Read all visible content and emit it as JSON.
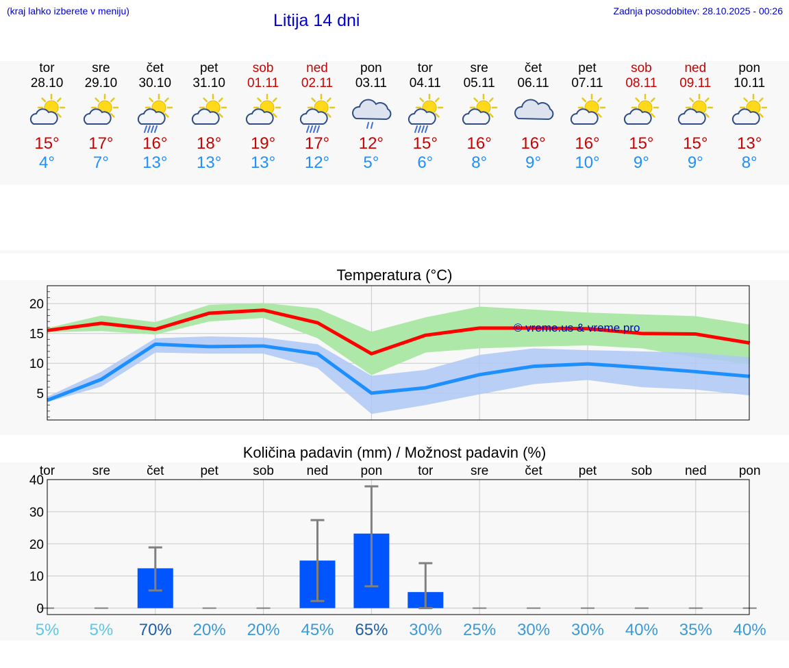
{
  "header": {
    "location_hint": "(kraj lahko izberete v meniju)",
    "title": "Litija 14 dni",
    "updated": "Zadnja posodobitev: 28.10.2025 - 00:26"
  },
  "days": [
    {
      "day": "tor",
      "date": "28.10",
      "weekend": false,
      "icon": "partly-sunny-icon",
      "tmax": "15°",
      "tmin": "4°"
    },
    {
      "day": "sre",
      "date": "29.10",
      "weekend": false,
      "icon": "partly-sunny-icon",
      "tmax": "17°",
      "tmin": "7°"
    },
    {
      "day": "čet",
      "date": "30.10",
      "weekend": false,
      "icon": "sun-rain-icon",
      "tmax": "16°",
      "tmin": "13°"
    },
    {
      "day": "pet",
      "date": "31.10",
      "weekend": false,
      "icon": "partly-sunny-icon",
      "tmax": "18°",
      "tmin": "13°"
    },
    {
      "day": "sob",
      "date": "01.11",
      "weekend": true,
      "icon": "partly-sunny-icon",
      "tmax": "19°",
      "tmin": "13°"
    },
    {
      "day": "ned",
      "date": "02.11",
      "weekend": true,
      "icon": "sun-rain-icon",
      "tmax": "17°",
      "tmin": "12°"
    },
    {
      "day": "pon",
      "date": "03.11",
      "weekend": false,
      "icon": "cloud-rain-icon",
      "tmax": "12°",
      "tmin": "5°"
    },
    {
      "day": "tor",
      "date": "04.11",
      "weekend": false,
      "icon": "sun-rain-icon",
      "tmax": "15°",
      "tmin": "6°"
    },
    {
      "day": "sre",
      "date": "05.11",
      "weekend": false,
      "icon": "partly-sunny-icon",
      "tmax": "16°",
      "tmin": "8°"
    },
    {
      "day": "čet",
      "date": "06.11",
      "weekend": false,
      "icon": "cloudy-icon",
      "tmax": "16°",
      "tmin": "9°"
    },
    {
      "day": "pet",
      "date": "07.11",
      "weekend": false,
      "icon": "partly-sunny-icon",
      "tmax": "16°",
      "tmin": "10°"
    },
    {
      "day": "sob",
      "date": "08.11",
      "weekend": true,
      "icon": "partly-sunny-icon",
      "tmax": "15°",
      "tmin": "9°"
    },
    {
      "day": "ned",
      "date": "09.11",
      "weekend": true,
      "icon": "partly-sunny-icon",
      "tmax": "15°",
      "tmin": "9°"
    },
    {
      "day": "pon",
      "date": "10.11",
      "weekend": false,
      "icon": "partly-sunny-icon",
      "tmax": "13°",
      "tmin": "8°"
    }
  ],
  "colors": {
    "max_line": "#ff0000",
    "max_band": "#aee8a8",
    "min_line": "#1e8fff",
    "min_band": "#aec8f4",
    "bar": "#0055ff",
    "error": "#808080",
    "weekend": "#cc0000"
  },
  "chart_data": [
    {
      "type": "line",
      "title": "Temperatura (°C)",
      "watermark": "© vreme.us & vreme.pro",
      "xlabel": "",
      "ylabel": "",
      "ylim": [
        0.5,
        23
      ],
      "yticks": [
        5,
        10,
        15,
        20
      ],
      "x": [
        0,
        1,
        2,
        3,
        4,
        5,
        6,
        7,
        8,
        9,
        10,
        11,
        12,
        13
      ],
      "series": [
        {
          "name": "max",
          "values": [
            15.5,
            16.7,
            15.7,
            18.4,
            18.9,
            16.8,
            11.6,
            14.7,
            15.9,
            15.9,
            15.8,
            15.0,
            14.9,
            13.4
          ],
          "low": [
            15.2,
            15.4,
            14.8,
            17.0,
            17.6,
            14.2,
            8.0,
            11.8,
            12.5,
            12.8,
            13.0,
            12.5,
            11.0,
            9.8
          ],
          "high": [
            15.9,
            18.0,
            16.9,
            19.8,
            20.1,
            19.2,
            15.3,
            17.7,
            19.5,
            19.0,
            18.5,
            18.2,
            17.9,
            16.5
          ]
        },
        {
          "name": "min",
          "values": [
            3.8,
            7.3,
            13.2,
            12.8,
            12.9,
            11.6,
            5.0,
            5.9,
            8.1,
            9.5,
            9.9,
            9.3,
            8.6,
            7.8
          ],
          "low": [
            3.5,
            6.1,
            11.8,
            11.6,
            11.6,
            9.2,
            1.5,
            3.0,
            4.8,
            6.5,
            7.2,
            6.0,
            5.6,
            4.6
          ],
          "high": [
            4.4,
            8.6,
            14.2,
            14.5,
            14.3,
            13.2,
            7.9,
            8.9,
            11.4,
            12.5,
            12.2,
            12.0,
            11.8,
            11.0
          ]
        }
      ]
    },
    {
      "type": "bar",
      "title": "Količina padavin (mm) / Možnost padavin (%)",
      "categories": [
        "tor",
        "sre",
        "čet",
        "pet",
        "sob",
        "ned",
        "pon",
        "tor",
        "sre",
        "čet",
        "pet",
        "sob",
        "ned",
        "pon"
      ],
      "ylim": [
        -2,
        40
      ],
      "yticks": [
        0,
        10,
        20,
        30,
        40
      ],
      "values": [
        0,
        0,
        12.4,
        0,
        0,
        14.8,
        23.2,
        5.0,
        0,
        0,
        0,
        0,
        0,
        0
      ],
      "err_low": [
        0,
        0,
        5.5,
        0,
        0,
        2.2,
        6.8,
        0,
        0,
        0,
        0,
        0,
        0,
        0
      ],
      "err_high": [
        0,
        0,
        18.9,
        0,
        0,
        27.4,
        37.9,
        14.0,
        0,
        0,
        0,
        0,
        0,
        0
      ],
      "chance": [
        "5%",
        "5%",
        "70%",
        "20%",
        "20%",
        "45%",
        "65%",
        "30%",
        "25%",
        "30%",
        "30%",
        "40%",
        "35%",
        "40%"
      ],
      "chance_colors": [
        "#5bc8e6",
        "#5bc8e6",
        "#1a5fa8",
        "#3a9ad6",
        "#3a9ad6",
        "#3a9ad6",
        "#1a5fa8",
        "#3a9ad6",
        "#3a9ad6",
        "#3a9ad6",
        "#3a9ad6",
        "#3a9ad6",
        "#3a9ad6",
        "#3a9ad6"
      ]
    }
  ]
}
